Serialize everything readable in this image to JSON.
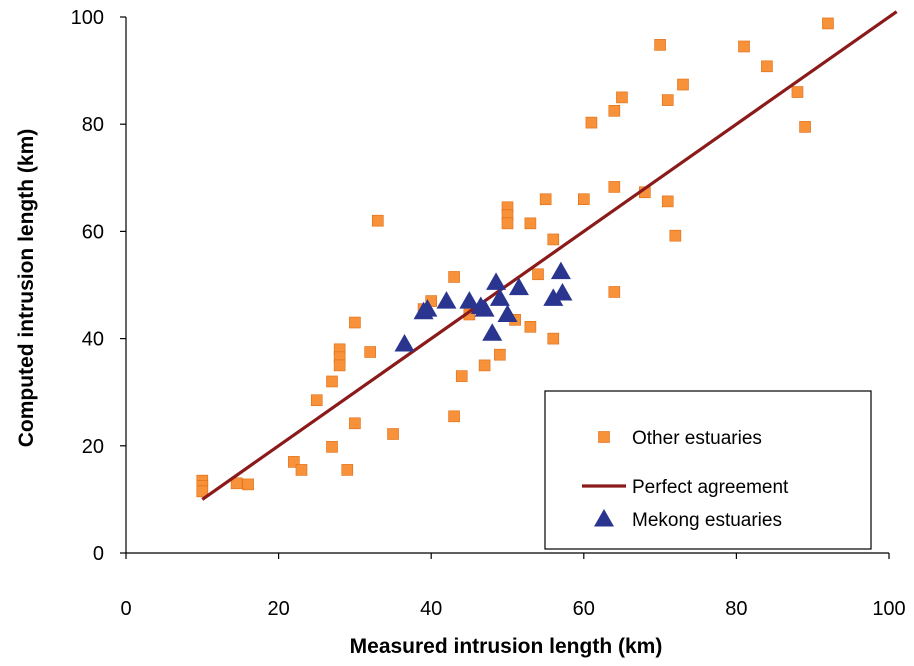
{
  "chart_data": {
    "type": "scatter",
    "title": "",
    "xlabel": "Measured intrusion length (km)",
    "ylabel": "Computed intrusion length (km)",
    "xlim": [
      0,
      100
    ],
    "ylim": [
      0,
      100
    ],
    "xticks": [
      0,
      20,
      40,
      60,
      80,
      100
    ],
    "yticks": [
      0,
      20,
      40,
      60,
      80,
      100
    ],
    "grid": false,
    "legend_position": "bottom-right",
    "series": [
      {
        "name": "Other estuaries",
        "marker": "square",
        "color": "#F7923A",
        "points": [
          [
            10,
            13.5
          ],
          [
            10,
            12.5
          ],
          [
            10,
            11.5
          ],
          [
            14.5,
            13
          ],
          [
            16,
            12.8
          ],
          [
            22,
            17
          ],
          [
            23,
            15.5
          ],
          [
            25,
            28.5
          ],
          [
            27,
            32
          ],
          [
            27,
            19.8
          ],
          [
            28,
            38
          ],
          [
            28,
            36.5
          ],
          [
            28,
            35
          ],
          [
            29,
            15.5
          ],
          [
            30,
            43
          ],
          [
            30,
            24.2
          ],
          [
            32,
            37.5
          ],
          [
            33,
            62
          ],
          [
            35,
            22.2
          ],
          [
            39,
            45.5
          ],
          [
            40,
            47
          ],
          [
            43,
            51.5
          ],
          [
            43,
            25.5
          ],
          [
            44,
            33
          ],
          [
            45,
            44.5
          ],
          [
            47,
            35
          ],
          [
            49,
            37
          ],
          [
            50,
            64.5
          ],
          [
            50,
            63
          ],
          [
            50,
            61.5
          ],
          [
            51,
            43.5
          ],
          [
            53,
            61.5
          ],
          [
            53,
            42.2
          ],
          [
            54,
            52
          ],
          [
            55,
            66
          ],
          [
            56,
            58.5
          ],
          [
            56,
            40
          ],
          [
            60,
            66
          ],
          [
            61,
            80.3
          ],
          [
            64,
            82.5
          ],
          [
            64,
            68.3
          ],
          [
            64,
            48.7
          ],
          [
            65,
            85
          ],
          [
            68,
            67.3
          ],
          [
            70,
            94.8
          ],
          [
            71,
            65.6
          ],
          [
            71,
            84.5
          ],
          [
            72,
            59.2
          ],
          [
            73,
            87.4
          ],
          [
            81,
            94.5
          ],
          [
            84,
            90.8
          ],
          [
            88,
            86
          ],
          [
            89,
            79.5
          ],
          [
            92,
            98.8
          ]
        ]
      },
      {
        "name": "Perfect agreement",
        "type": "line",
        "color": "#8B1A1A",
        "points": [
          [
            10,
            10
          ],
          [
            101,
            101
          ]
        ]
      },
      {
        "name": "Mekong estuaries",
        "marker": "triangle",
        "color": "#2A3590",
        "points": [
          [
            36.5,
            39
          ],
          [
            39,
            45
          ],
          [
            39.5,
            45.5
          ],
          [
            42,
            47
          ],
          [
            45,
            47
          ],
          [
            46.5,
            46
          ],
          [
            47,
            45.5
          ],
          [
            48,
            41
          ],
          [
            48.5,
            50.5
          ],
          [
            49,
            47.5
          ],
          [
            50,
            44.5
          ],
          [
            51.5,
            49.5
          ],
          [
            56,
            47.5
          ],
          [
            57,
            52.5
          ],
          [
            57.2,
            48.5
          ]
        ]
      }
    ]
  }
}
